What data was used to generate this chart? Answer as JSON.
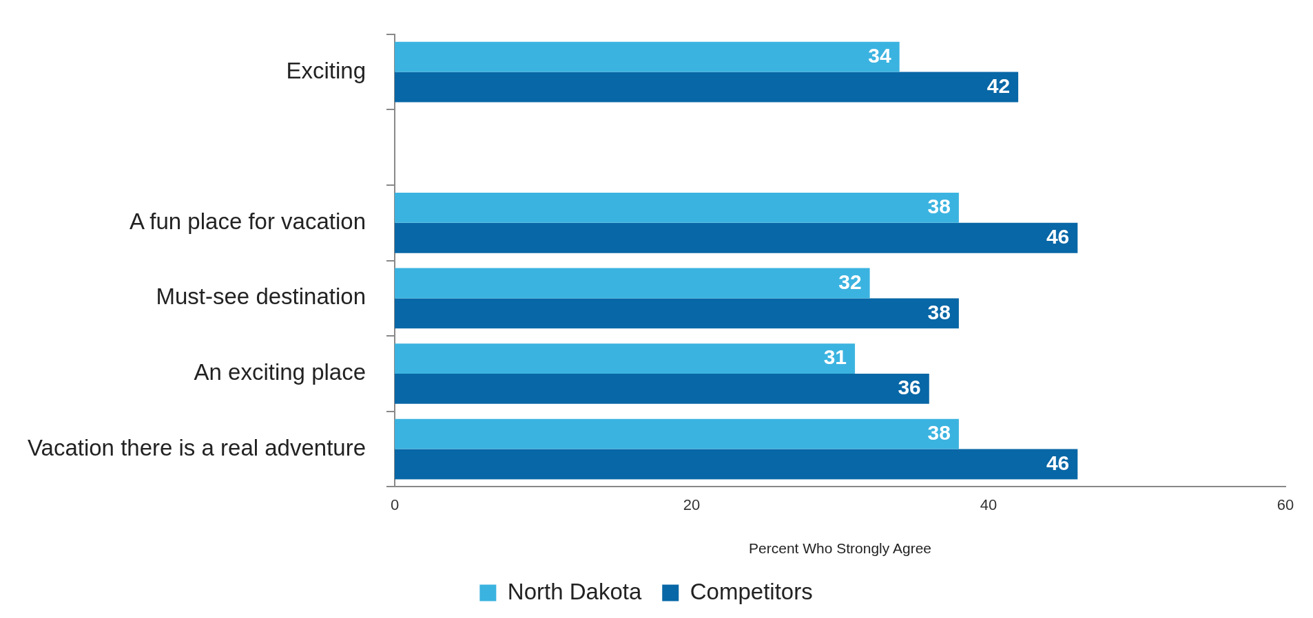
{
  "chart_data": {
    "type": "bar",
    "orientation": "horizontal",
    "categories": [
      "Exciting",
      null,
      "A fun place for vacation",
      "Must-see destination",
      "An exciting place",
      "Vacation there is a real adventure"
    ],
    "series": [
      {
        "name": "North Dakota",
        "color": "#3bb3e0",
        "values": [
          34,
          null,
          38,
          32,
          31,
          38
        ]
      },
      {
        "name": "Competitors",
        "color": "#0867a6",
        "values": [
          42,
          null,
          46,
          38,
          36,
          46
        ]
      }
    ],
    "xlabel": "Percent Who Strongly Agree",
    "xlim": [
      0,
      60
    ],
    "xticks": [
      0,
      20,
      40,
      60
    ],
    "grid": false,
    "legend": "bottom",
    "data_labels": true
  }
}
